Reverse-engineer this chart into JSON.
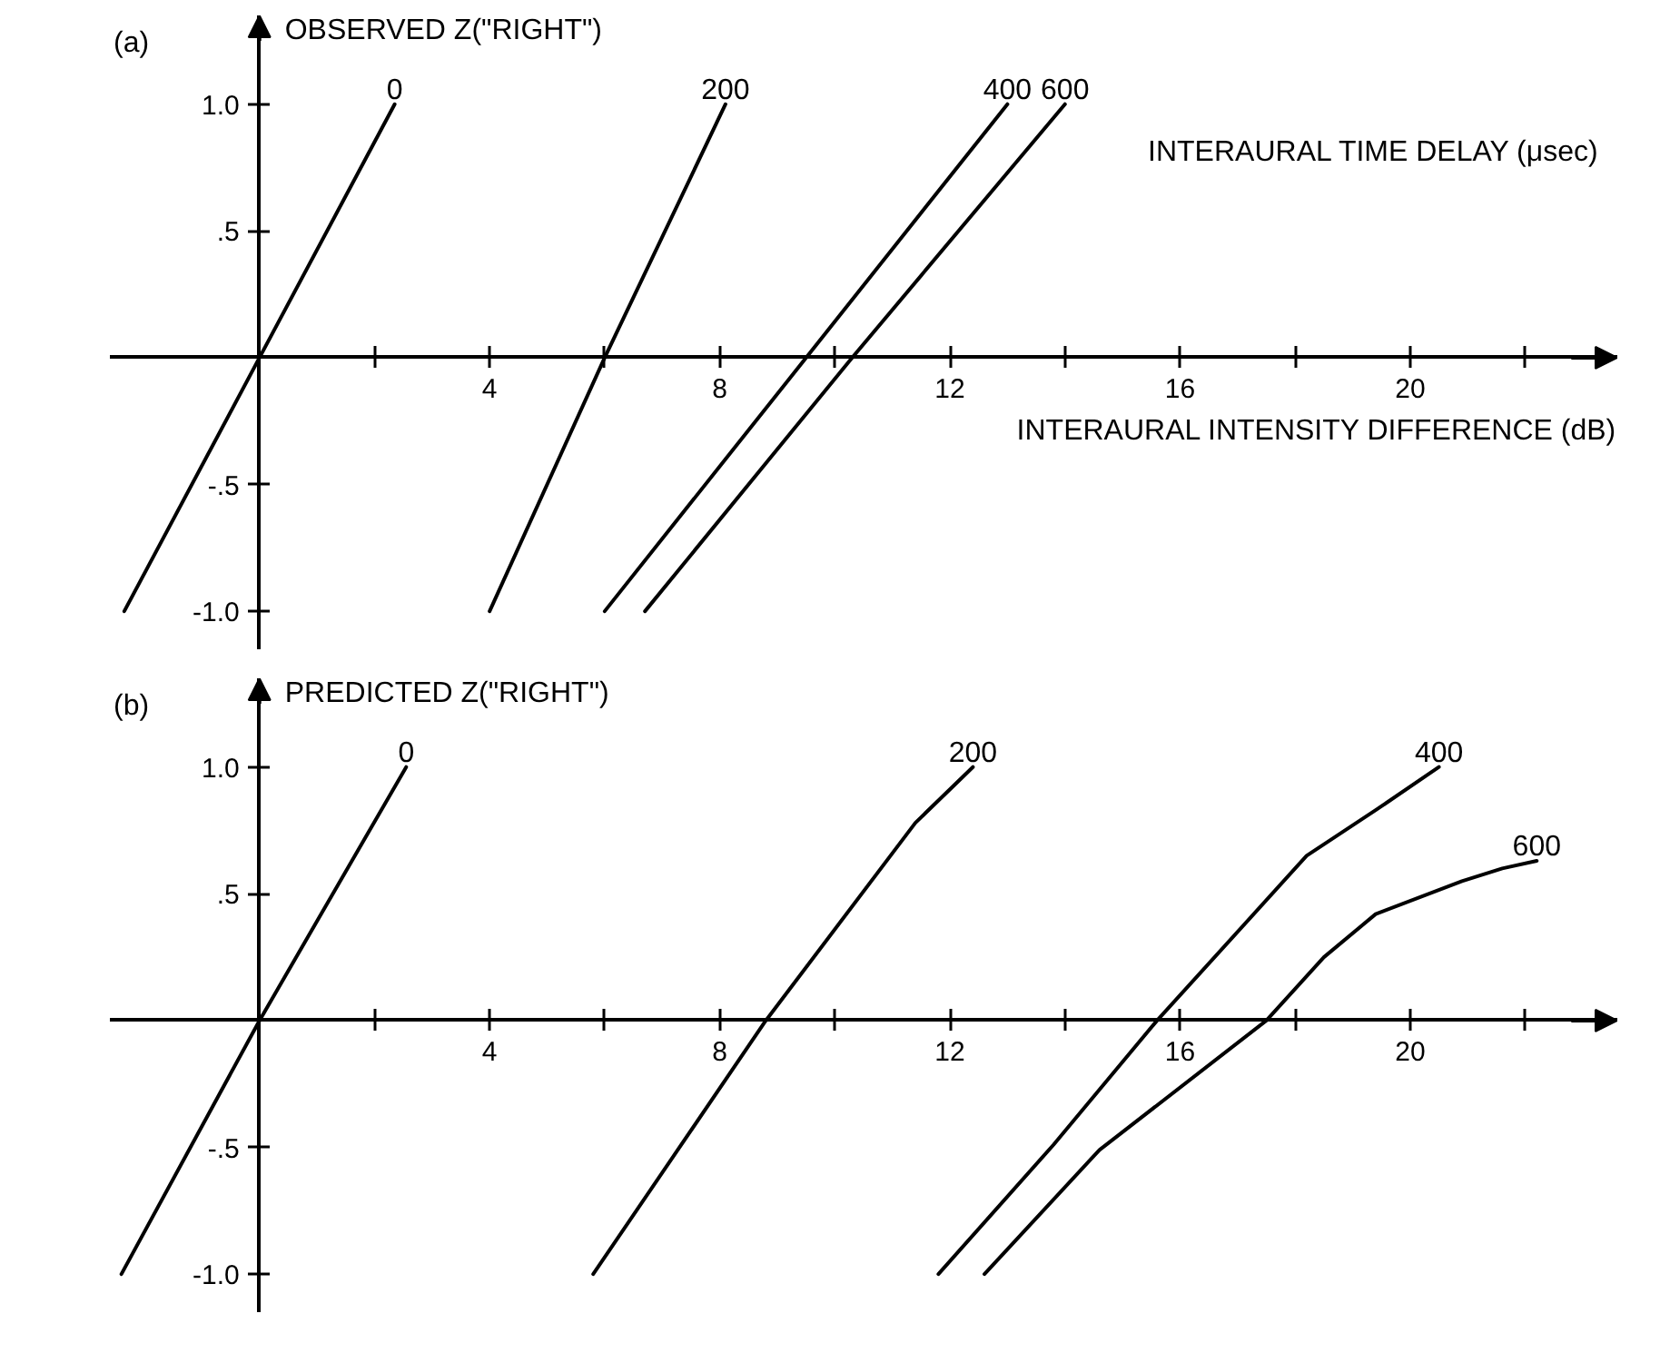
{
  "chart_data": [
    {
      "type": "line",
      "ylabel": "OBSERVED Z(\"RIGHT\")",
      "xlabel": "INTERAURAL INTENSITY DIFFERENCE (dB)",
      "annotations": [
        "(a)",
        "INTERAURAL TIME DELAY (μsec)"
      ],
      "xlim": [
        -2.6,
        23.6
      ],
      "ylim": [
        -1.15,
        1.35
      ],
      "xticks": [
        {
          "value": 2,
          "label": null
        },
        4,
        {
          "value": 6,
          "label": null
        },
        8,
        {
          "value": 10,
          "label": null
        },
        12,
        {
          "value": 14,
          "label": null
        },
        16,
        {
          "value": 18,
          "label": null
        },
        20,
        {
          "value": 22,
          "label": null
        }
      ],
      "yticks": [
        {
          "value": -1,
          "label": "-1.0"
        },
        {
          "value": -0.5,
          "label": "-.5"
        },
        {
          "value": 0.5,
          "label": ".5"
        },
        {
          "value": 1,
          "label": "1.0"
        }
      ],
      "grid": false,
      "marker": "none",
      "line_style": "solid",
      "series": [
        {
          "name": "0",
          "color": "#000000",
          "x": [
            -2.35,
            0,
            2.35
          ],
          "values": [
            -1,
            0,
            1
          ]
        },
        {
          "name": "200",
          "color": "#000000",
          "x": [
            4,
            6,
            8.1
          ],
          "values": [
            -1,
            0,
            1
          ]
        },
        {
          "name": "400",
          "color": "#000000",
          "x": [
            6,
            9.5,
            13
          ],
          "values": [
            -1,
            0,
            1
          ]
        },
        {
          "name": "600",
          "color": "#000000",
          "x": [
            6.7,
            10.3,
            14
          ],
          "values": [
            -1,
            0,
            1
          ]
        }
      ]
    },
    {
      "type": "line",
      "ylabel": "PREDICTED Z(\"RIGHT\")",
      "annotations": [
        "(b)"
      ],
      "xlim": [
        -2.6,
        23.6
      ],
      "ylim": [
        -1.15,
        1.35
      ],
      "xticks": [
        {
          "value": 2,
          "label": null
        },
        4,
        {
          "value": 6,
          "label": null
        },
        8,
        {
          "value": 10,
          "label": null
        },
        12,
        {
          "value": 14,
          "label": null
        },
        16,
        {
          "value": 18,
          "label": null
        },
        20,
        {
          "value": 22,
          "label": null
        }
      ],
      "yticks": [
        {
          "value": -1,
          "label": "-1.0"
        },
        {
          "value": -0.5,
          "label": "-.5"
        },
        {
          "value": 0.5,
          "label": ".5"
        },
        {
          "value": 1,
          "label": "1.0"
        }
      ],
      "grid": false,
      "marker": "none",
      "line_style": "solid",
      "series": [
        {
          "name": "0",
          "color": "#000000",
          "x": [
            -2.4,
            0,
            2.55
          ],
          "values": [
            -1,
            0,
            1
          ]
        },
        {
          "name": "200",
          "color": "#000000",
          "x": [
            5.8,
            8.8,
            11.4,
            12.4
          ],
          "values": [
            -1,
            0,
            0.78,
            1
          ]
        },
        {
          "name": "400",
          "color": "#000000",
          "x": [
            11.8,
            13.8,
            15.6,
            18.2,
            19.4,
            20.5
          ],
          "values": [
            -1,
            -0.49,
            0,
            0.65,
            0.83,
            1
          ]
        },
        {
          "name": "600",
          "color": "#000000",
          "x": [
            12.6,
            14.6,
            17.5,
            18.5,
            19.4,
            20.9,
            21.6,
            22.2
          ],
          "values": [
            -1,
            -0.51,
            0,
            0.25,
            0.42,
            0.55,
            0.6,
            0.63
          ]
        }
      ]
    }
  ]
}
